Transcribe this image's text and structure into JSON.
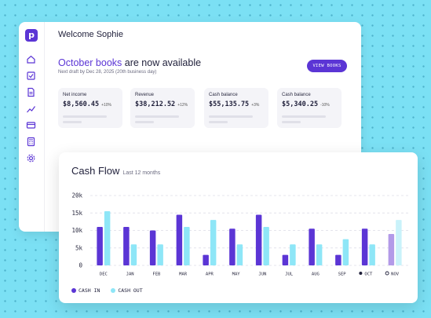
{
  "welcome": "Welcome Sophie",
  "headline": {
    "accent": "October books",
    "rest": " are now available"
  },
  "subline": "Next draft by Dec 28, 2025 (20th business day)",
  "view_button": "VIEW BOOKS",
  "logo_letter": "p",
  "sidebar_icons": [
    "home-icon",
    "checklist-icon",
    "document-icon",
    "chart-icon",
    "card-icon",
    "calculator-icon",
    "gear-icon"
  ],
  "kpis": [
    {
      "label": "Net income",
      "value": "$8,560.45",
      "delta": "+10%"
    },
    {
      "label": "Revenue",
      "value": "$38,212.52",
      "delta": "+12%"
    },
    {
      "label": "Cash balance",
      "value": "$55,135.75",
      "delta": "+3%"
    },
    {
      "label": "Cash balance",
      "value": "$5,340.25",
      "delta": "-10%"
    }
  ],
  "cashflow": {
    "title": "Cash Flow",
    "subtitle": "Last 12 months"
  },
  "colors": {
    "cash_in": "#5b35d5",
    "cash_out": "#8ee6f7",
    "cash_in_forecast": "#b39ae8",
    "cash_out_forecast": "#c9f2fa",
    "accent": "#5b35d5"
  },
  "chart_data": {
    "type": "bar",
    "categories": [
      "DEC",
      "JAN",
      "FEB",
      "MAR",
      "APR",
      "MAY",
      "JUN",
      "JUL",
      "AUG",
      "SEP",
      "OCT",
      "NOV"
    ],
    "series": [
      {
        "name": "CASH IN",
        "values": [
          11000,
          11000,
          10000,
          14500,
          3000,
          10500,
          14500,
          3000,
          10500,
          3000,
          10500,
          9000
        ]
      },
      {
        "name": "CASH OUT",
        "values": [
          15500,
          6000,
          6000,
          11000,
          13000,
          6000,
          11000,
          6000,
          6000,
          7500,
          6000,
          13000
        ]
      }
    ],
    "y_ticks": [
      "20k",
      "15k",
      "10k",
      "5k",
      "0"
    ],
    "ylim": [
      0,
      20000
    ],
    "grid": true,
    "legend": "bottom-left",
    "forecast_categories": [
      "NOV"
    ]
  }
}
